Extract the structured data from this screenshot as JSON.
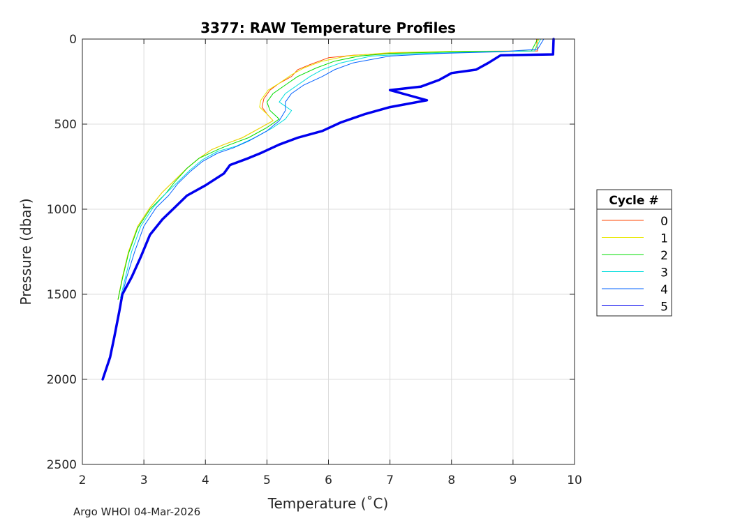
{
  "chart_data": {
    "type": "line",
    "title": "3377: RAW Temperature Profiles",
    "xlabel": "Temperature (˚C)",
    "ylabel": "Pressure (dbar)",
    "xlim": [
      2,
      10
    ],
    "ylim": [
      0,
      2500
    ],
    "y_reversed": true,
    "xticks": [
      2,
      3,
      4,
      5,
      6,
      7,
      8,
      9,
      10
    ],
    "yticks": [
      0,
      500,
      1000,
      1500,
      2000,
      2500
    ],
    "grid": true,
    "legend": {
      "title": "Cycle #",
      "placement": "right"
    },
    "series": [
      {
        "name": "0",
        "color": "#ff4400",
        "width": 1,
        "points": [
          [
            9.38,
            0
          ],
          [
            9.4,
            70
          ],
          [
            8.3,
            72
          ],
          [
            7.2,
            80
          ],
          [
            6.4,
            95
          ],
          [
            6.0,
            110
          ],
          [
            5.7,
            150
          ],
          [
            5.5,
            180
          ],
          [
            5.4,
            220
          ],
          [
            5.2,
            260
          ],
          [
            5.05,
            300
          ],
          [
            4.95,
            350
          ],
          [
            4.92,
            400
          ],
          [
            5.0,
            440
          ],
          [
            5.1,
            480
          ],
          [
            4.9,
            520
          ],
          [
            4.6,
            580
          ],
          [
            4.3,
            620
          ],
          [
            4.1,
            650
          ],
          [
            3.9,
            700
          ],
          [
            3.7,
            760
          ],
          [
            3.5,
            830
          ],
          [
            3.3,
            900
          ],
          [
            3.1,
            990
          ],
          [
            2.9,
            1100
          ],
          [
            2.75,
            1250
          ],
          [
            2.65,
            1400
          ],
          [
            2.58,
            1530
          ]
        ]
      },
      {
        "name": "1",
        "color": "#e8e800",
        "width": 1,
        "points": [
          [
            9.42,
            0
          ],
          [
            9.35,
            70
          ],
          [
            8.0,
            72
          ],
          [
            7.0,
            80
          ],
          [
            6.3,
            100
          ],
          [
            5.9,
            130
          ],
          [
            5.6,
            170
          ],
          [
            5.4,
            210
          ],
          [
            5.2,
            260
          ],
          [
            5.02,
            300
          ],
          [
            4.9,
            360
          ],
          [
            4.88,
            400
          ],
          [
            5.0,
            440
          ],
          [
            5.1,
            480
          ],
          [
            4.9,
            520
          ],
          [
            4.6,
            580
          ],
          [
            4.3,
            620
          ],
          [
            4.1,
            650
          ],
          [
            3.9,
            700
          ],
          [
            3.7,
            760
          ],
          [
            3.5,
            830
          ],
          [
            3.3,
            900
          ],
          [
            3.1,
            990
          ],
          [
            2.9,
            1100
          ],
          [
            2.75,
            1250
          ],
          [
            2.65,
            1400
          ],
          [
            2.58,
            1530
          ]
        ]
      },
      {
        "name": "2",
        "color": "#00dd00",
        "width": 1,
        "points": [
          [
            9.4,
            0
          ],
          [
            9.3,
            70
          ],
          [
            8.0,
            75
          ],
          [
            7.0,
            85
          ],
          [
            6.5,
            100
          ],
          [
            6.1,
            130
          ],
          [
            5.8,
            170
          ],
          [
            5.5,
            220
          ],
          [
            5.3,
            270
          ],
          [
            5.1,
            320
          ],
          [
            5.0,
            370
          ],
          [
            5.05,
            420
          ],
          [
            5.2,
            470
          ],
          [
            5.0,
            520
          ],
          [
            4.7,
            580
          ],
          [
            4.4,
            620
          ],
          [
            4.2,
            650
          ],
          [
            3.9,
            700
          ],
          [
            3.7,
            760
          ],
          [
            3.5,
            840
          ],
          [
            3.35,
            910
          ],
          [
            3.1,
            1000
          ],
          [
            2.9,
            1110
          ],
          [
            2.75,
            1260
          ],
          [
            2.65,
            1410
          ],
          [
            2.58,
            1530
          ]
        ]
      },
      {
        "name": "3",
        "color": "#00dddd",
        "width": 1,
        "points": [
          [
            9.45,
            0
          ],
          [
            9.35,
            70
          ],
          [
            8.5,
            75
          ],
          [
            7.5,
            85
          ],
          [
            6.7,
            100
          ],
          [
            6.2,
            140
          ],
          [
            5.9,
            180
          ],
          [
            5.7,
            220
          ],
          [
            5.5,
            270
          ],
          [
            5.3,
            320
          ],
          [
            5.2,
            370
          ],
          [
            5.4,
            420
          ],
          [
            5.3,
            470
          ],
          [
            5.1,
            520
          ],
          [
            4.8,
            580
          ],
          [
            4.5,
            630
          ],
          [
            4.2,
            660
          ],
          [
            3.95,
            710
          ],
          [
            3.75,
            770
          ],
          [
            3.55,
            840
          ],
          [
            3.35,
            910
          ],
          [
            3.15,
            990
          ],
          [
            2.95,
            1100
          ],
          [
            2.8,
            1250
          ],
          [
            2.7,
            1400
          ],
          [
            2.62,
            1520
          ]
        ]
      },
      {
        "name": "4",
        "color": "#0060ff",
        "width": 1,
        "points": [
          [
            9.5,
            0
          ],
          [
            9.4,
            60
          ],
          [
            8.8,
            75
          ],
          [
            7.8,
            85
          ],
          [
            7.0,
            100
          ],
          [
            6.4,
            140
          ],
          [
            6.1,
            180
          ],
          [
            5.9,
            220
          ],
          [
            5.6,
            270
          ],
          [
            5.4,
            320
          ],
          [
            5.3,
            370
          ],
          [
            5.3,
            420
          ],
          [
            5.2,
            480
          ],
          [
            5.0,
            540
          ],
          [
            4.7,
            600
          ],
          [
            4.45,
            640
          ],
          [
            4.2,
            670
          ],
          [
            3.95,
            720
          ],
          [
            3.75,
            780
          ],
          [
            3.55,
            850
          ],
          [
            3.4,
            920
          ],
          [
            3.2,
            990
          ],
          [
            3.0,
            1100
          ],
          [
            2.85,
            1250
          ],
          [
            2.72,
            1400
          ],
          [
            2.65,
            1500
          ]
        ]
      },
      {
        "name": "5",
        "color": "#0000ee",
        "width": 3.5,
        "points": [
          [
            9.66,
            0
          ],
          [
            9.65,
            90
          ],
          [
            8.8,
            95
          ],
          [
            8.6,
            140
          ],
          [
            8.4,
            180
          ],
          [
            8.0,
            200
          ],
          [
            7.8,
            240
          ],
          [
            7.5,
            280
          ],
          [
            7.0,
            300
          ],
          [
            7.3,
            330
          ],
          [
            7.6,
            360
          ],
          [
            7.0,
            400
          ],
          [
            6.6,
            440
          ],
          [
            6.2,
            490
          ],
          [
            5.9,
            540
          ],
          [
            5.5,
            580
          ],
          [
            5.2,
            620
          ],
          [
            4.9,
            670
          ],
          [
            4.7,
            700
          ],
          [
            4.4,
            740
          ],
          [
            4.3,
            790
          ],
          [
            4.0,
            860
          ],
          [
            3.7,
            920
          ],
          [
            3.5,
            990
          ],
          [
            3.3,
            1060
          ],
          [
            3.1,
            1150
          ],
          [
            2.95,
            1280
          ],
          [
            2.8,
            1400
          ],
          [
            2.65,
            1500
          ],
          [
            2.6,
            1600
          ],
          [
            2.52,
            1750
          ],
          [
            2.45,
            1870
          ],
          [
            2.33,
            2000
          ]
        ]
      }
    ]
  },
  "footer": {
    "note": "Argo WHOI 04-Mar-2026"
  }
}
